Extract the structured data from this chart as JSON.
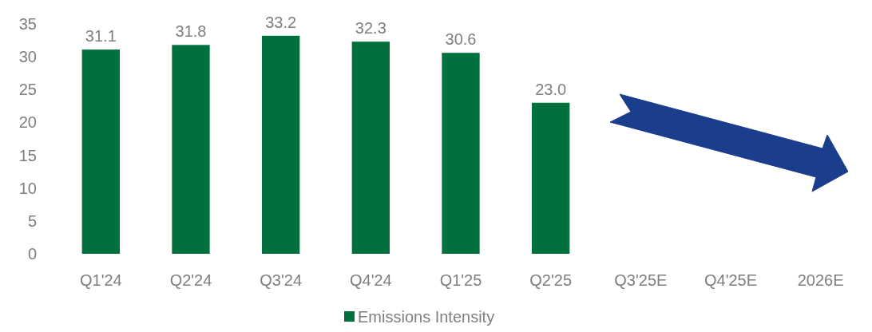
{
  "chart_data": {
    "type": "bar",
    "categories": [
      "Q1'24",
      "Q2'24",
      "Q3'24",
      "Q4'24",
      "Q1'25",
      "Q2'25",
      "Q3'25E",
      "Q4'25E",
      "2026E"
    ],
    "series": [
      {
        "name": "Emissions Intensity",
        "color": "#00703c",
        "values": [
          31.1,
          31.8,
          33.2,
          32.3,
          30.6,
          23.0,
          null,
          null,
          null
        ],
        "value_labels": [
          "31.1",
          "31.8",
          "33.2",
          "32.3",
          "30.6",
          "23.0",
          null,
          null,
          null
        ]
      }
    ],
    "ylim": [
      0,
      35
    ],
    "yticks": [
      0,
      5,
      10,
      15,
      20,
      25,
      30,
      35
    ],
    "legend": "bottom",
    "grid": false
  }
}
